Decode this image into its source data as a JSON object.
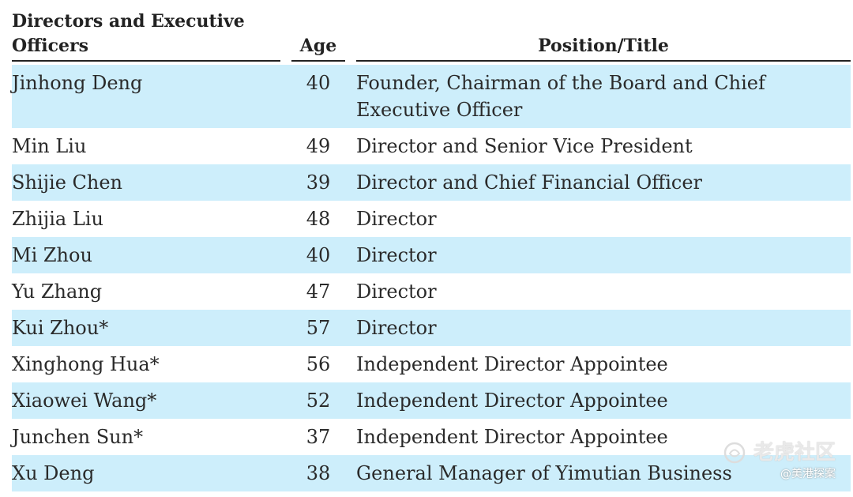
{
  "table": {
    "headers": {
      "name": "Directors and Executive Officers",
      "age": "Age",
      "position": "Position/Title"
    },
    "rows": [
      {
        "name": "Jinhong Deng",
        "age": "40",
        "position": "Founder, Chairman of the Board and Chief Executive Officer"
      },
      {
        "name": "Min Liu",
        "age": "49",
        "position": "Director and Senior Vice President"
      },
      {
        "name": "Shijie Chen",
        "age": "39",
        "position": "Director and Chief Financial Officer"
      },
      {
        "name": "Zhijia Liu",
        "age": "48",
        "position": "Director"
      },
      {
        "name": "Mi Zhou",
        "age": "40",
        "position": "Director"
      },
      {
        "name": "Yu Zhang",
        "age": "47",
        "position": "Director"
      },
      {
        "name": "Kui Zhou*",
        "age": "57",
        "position": "Director"
      },
      {
        "name": "Xinghong Hua*",
        "age": "56",
        "position": "Independent Director Appointee"
      },
      {
        "name": "Xiaowei Wang*",
        "age": "52",
        "position": "Independent Director Appointee"
      },
      {
        "name": "Junchen Sun*",
        "age": "37",
        "position": "Independent Director Appointee"
      },
      {
        "name": "Xu Deng",
        "age": "38",
        "position": "General Manager of Yimutian Business"
      }
    ]
  },
  "watermark": {
    "brand": "老虎社区",
    "handle": "@美港探案"
  },
  "colors": {
    "row_shade": "#cdeefb",
    "text": "#222222"
  }
}
